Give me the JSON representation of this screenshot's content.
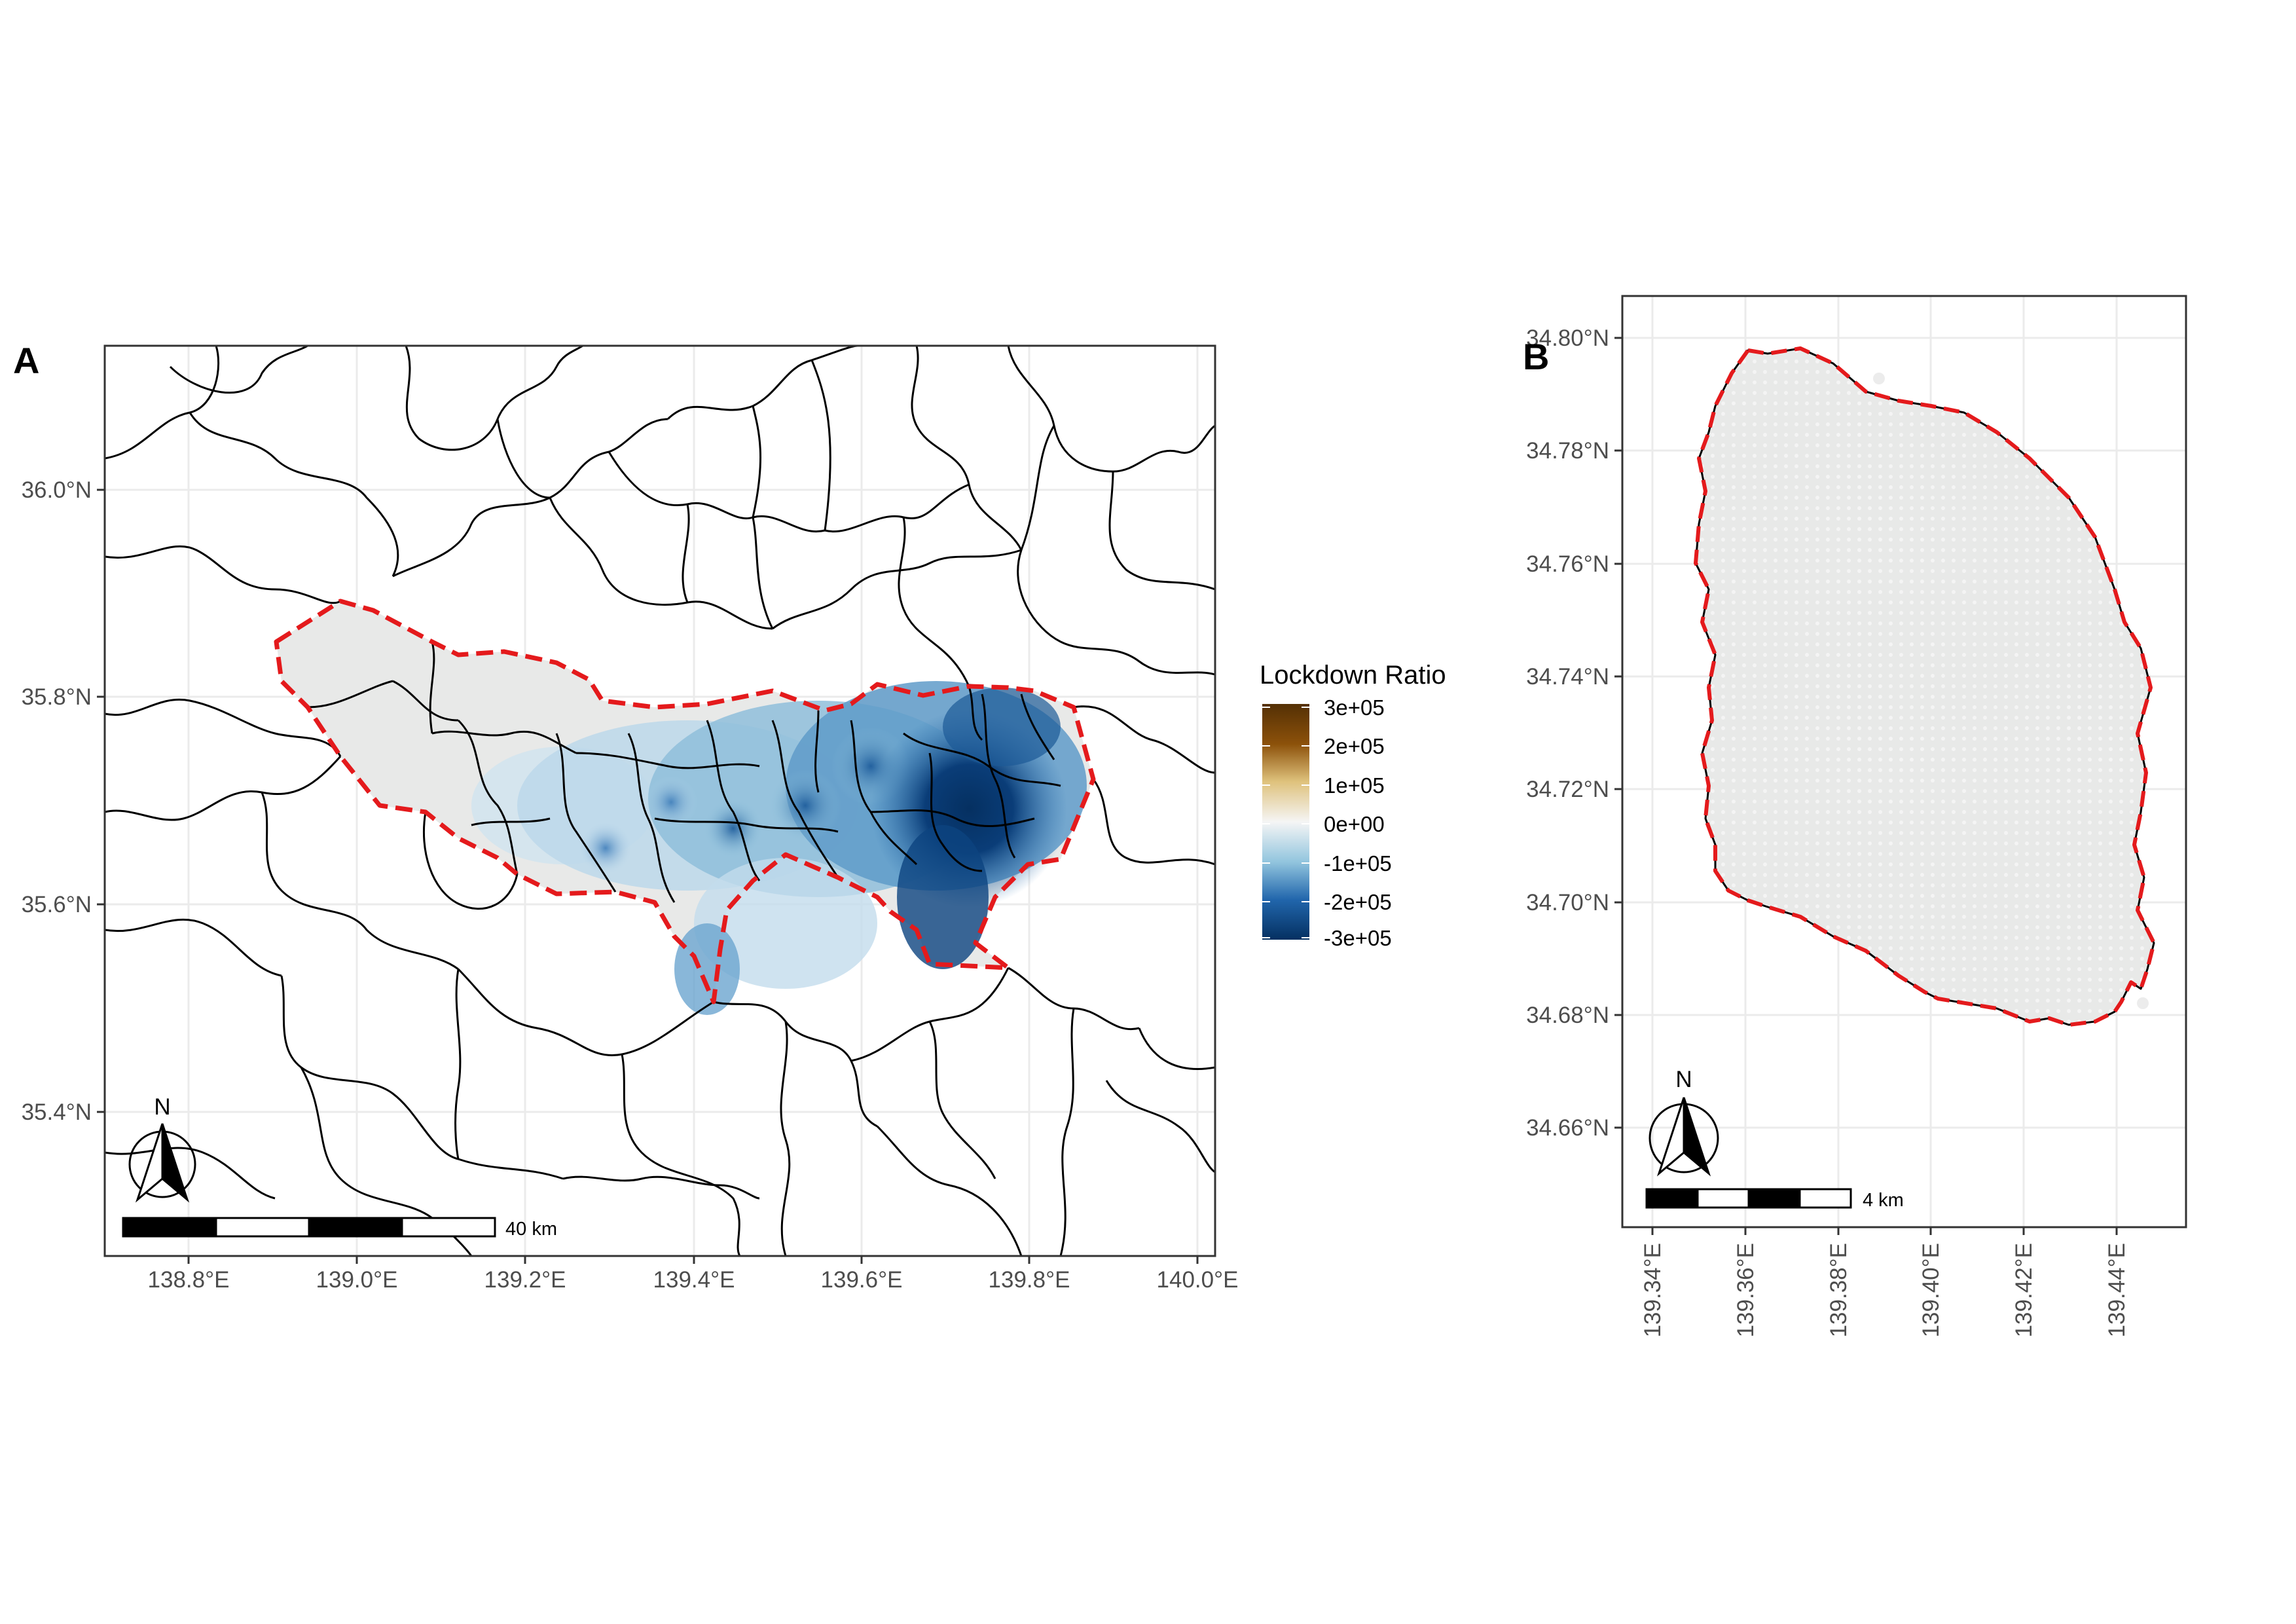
{
  "panels": [
    {
      "letter": "A",
      "x_ticks": [
        "138.8°E",
        "139.0°E",
        "139.2°E",
        "139.4°E",
        "139.6°E",
        "139.8°E",
        "140.0°E"
      ],
      "y_ticks": [
        "36.0°N",
        "35.8°N",
        "35.6°N",
        "35.4°N"
      ],
      "scalebar_label": "40 km",
      "north_label": "N"
    },
    {
      "letter": "B",
      "x_ticks": [
        "139.34°E",
        "139.36°E",
        "139.38°E",
        "139.40°E",
        "139.42°E",
        "139.44°E"
      ],
      "y_ticks": [
        "34.80°N",
        "34.78°N",
        "34.76°N",
        "34.74°N",
        "34.72°N",
        "34.70°N",
        "34.68°N",
        "34.66°N"
      ],
      "scalebar_label": "4 km",
      "north_label": "N"
    }
  ],
  "legend": {
    "title": "Lockdown Ratio",
    "labels": [
      "3e+05",
      "2e+05",
      "1e+05",
      "0e+00",
      "-1e+05",
      "-2e+05",
      "-3e+05"
    ],
    "colors": [
      "#543005",
      "#8c510a",
      "#dfc27d",
      "#f5f5f5",
      "#92c5de",
      "#2166ac",
      "#053061"
    ]
  },
  "colors": {
    "boundary_highlight": "#e41a1c",
    "zero_fill": "#e8e9e8",
    "grid": "#ebebeb"
  }
}
